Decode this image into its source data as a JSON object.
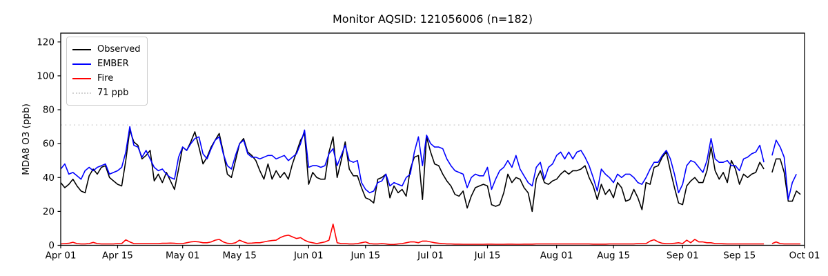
{
  "figure": {
    "background": "#ffffff"
  },
  "chart_data": {
    "type": "line",
    "title": "Monitor AQSID: 121056006 (n=182)",
    "xlabel": "",
    "ylabel": "MDA8 O3 (ppb)",
    "ylim": [
      0,
      125
    ],
    "yticks": [
      0,
      20,
      40,
      60,
      80,
      100,
      120
    ],
    "grid": false,
    "legend_position": "upper-left",
    "n_days": 183,
    "x_tick_days": [
      0,
      14,
      30,
      44,
      61,
      75,
      91,
      105,
      122,
      136,
      153,
      167,
      183
    ],
    "x_tick_labels": [
      "Apr 01",
      "Apr 15",
      "May 01",
      "May 15",
      "Jun 01",
      "Jun 15",
      "Jul 01",
      "Jul 15",
      "Aug 01",
      "Aug 15",
      "Sep 01",
      "Sep 15",
      "Oct 01"
    ],
    "threshold": {
      "label": "71 ppb",
      "value": 71,
      "color": "#d3d3d3",
      "linestyle": "dotted"
    },
    "series": [
      {
        "name": "Observed",
        "color": "#000000",
        "values": [
          37,
          34,
          36,
          39,
          35,
          32,
          31,
          41,
          45,
          42,
          46,
          47,
          40,
          38,
          36,
          35,
          50,
          68,
          61,
          59,
          51,
          53,
          56,
          38,
          42,
          37,
          43,
          38,
          33,
          45,
          58,
          56,
          61,
          67,
          58,
          48,
          52,
          58,
          62,
          66,
          55,
          42,
          40,
          50,
          60,
          63,
          55,
          53,
          50,
          44,
          39,
          48,
          39,
          44,
          40,
          43,
          39,
          48,
          55,
          62,
          66,
          36,
          43,
          40,
          39,
          39,
          55,
          64,
          40,
          50,
          61,
          45,
          41,
          41,
          34,
          28,
          27,
          25,
          39,
          40,
          42,
          28,
          35,
          31,
          33,
          29,
          45,
          52,
          53,
          27,
          64,
          55,
          48,
          47,
          42,
          38,
          35,
          30,
          29,
          32,
          22,
          29,
          34,
          35,
          36,
          35,
          24,
          23,
          24,
          31,
          42,
          37,
          40,
          39,
          34,
          31,
          20,
          39,
          44,
          37,
          36,
          38,
          39,
          42,
          44,
          42,
          44,
          44,
          45,
          47,
          40,
          35,
          27,
          36,
          30,
          33,
          28,
          37,
          34,
          26,
          27,
          33,
          28,
          21,
          37,
          36,
          46,
          47,
          52,
          55,
          44,
          34,
          25,
          24,
          35,
          38,
          40,
          37,
          37,
          44,
          58,
          44,
          39,
          43,
          37,
          50,
          45,
          36,
          42,
          40,
          42,
          43,
          49,
          45,
          null,
          43,
          51,
          51,
          43,
          26,
          26,
          32,
          30
        ]
      },
      {
        "name": "EMBER",
        "color": "#0000ff",
        "values": [
          45,
          48,
          42,
          43,
          41,
          39,
          44,
          46,
          44,
          46,
          47,
          48,
          42,
          43,
          44,
          46,
          55,
          70,
          59,
          58,
          52,
          56,
          51,
          46,
          44,
          45,
          42,
          40,
          39,
          52,
          58,
          56,
          60,
          63,
          64,
          54,
          51,
          57,
          62,
          64,
          54,
          47,
          45,
          53,
          60,
          62,
          54,
          52,
          52,
          51,
          52,
          53,
          53,
          51,
          52,
          53,
          50,
          52,
          54,
          60,
          68,
          46,
          47,
          47,
          46,
          47,
          54,
          57,
          47,
          53,
          59,
          50,
          49,
          50,
          37,
          33,
          31,
          32,
          37,
          38,
          42,
          35,
          37,
          36,
          35,
          40,
          42,
          55,
          64,
          47,
          65,
          60,
          58,
          58,
          57,
          51,
          47,
          44,
          43,
          42,
          34,
          40,
          42,
          41,
          41,
          46,
          33,
          39,
          44,
          46,
          50,
          46,
          53,
          45,
          41,
          37,
          35,
          46,
          49,
          39,
          46,
          48,
          53,
          55,
          51,
          55,
          51,
          55,
          56,
          52,
          47,
          40,
          32,
          45,
          42,
          40,
          37,
          42,
          40,
          42,
          42,
          40,
          37,
          36,
          40,
          45,
          49,
          49,
          53,
          56,
          51,
          42,
          31,
          36,
          47,
          50,
          49,
          46,
          43,
          50,
          63,
          51,
          49,
          49,
          50,
          47,
          47,
          44,
          51,
          52,
          54,
          55,
          59,
          49,
          null,
          53,
          62,
          58,
          52,
          27,
          37,
          42,
          null
        ]
      },
      {
        "name": "Fire",
        "color": "#ff0000",
        "values": [
          0.8,
          1,
          1.2,
          1.8,
          1,
          0.8,
          0.8,
          1,
          1.7,
          1,
          0.8,
          0.8,
          0.8,
          0.8,
          1,
          1,
          3.2,
          2,
          1,
          1,
          1,
          1,
          1,
          1,
          1,
          1.2,
          1.2,
          1.3,
          1.2,
          1,
          1,
          1.5,
          2,
          2.2,
          2,
          1.5,
          1.5,
          2,
          3,
          3.5,
          2,
          1.2,
          1,
          1.5,
          3,
          2,
          1.2,
          1.3,
          1.5,
          1.5,
          2,
          2.5,
          2.8,
          3,
          4.5,
          5.5,
          6,
          5,
          4,
          4.5,
          3,
          2,
          1.5,
          1,
          1.5,
          2,
          3,
          12.5,
          1.5,
          1,
          1,
          0.8,
          0.8,
          1,
          1.5,
          2,
          1,
          0.8,
          0.8,
          1,
          0.8,
          0.5,
          0.5,
          0.8,
          1,
          1.5,
          2,
          2,
          1.5,
          2.5,
          2.5,
          2,
          1.5,
          1.2,
          1,
          0.8,
          0.8,
          0.7,
          0.7,
          0.6,
          0.6,
          0.6,
          0.6,
          0.6,
          0.6,
          0.7,
          0.7,
          0.6,
          0.6,
          0.6,
          0.7,
          0.7,
          0.6,
          0.6,
          0.7,
          0.7,
          0.7,
          0.8,
          0.8,
          0.8,
          0.8,
          0.8,
          0.8,
          0.8,
          0.8,
          0.8,
          0.8,
          0.8,
          0.8,
          0.8,
          0.8,
          0.7,
          0.7,
          0.7,
          0.7,
          0.8,
          0.8,
          0.8,
          0.8,
          0.8,
          0.8,
          0.8,
          1,
          1,
          1,
          2.5,
          3.3,
          2,
          1.2,
          1,
          1,
          1.2,
          1.5,
          1,
          3,
          1.5,
          3.5,
          2,
          2,
          1.5,
          1.5,
          1,
          1,
          0.9,
          0.8,
          0.8,
          0.8,
          0.8,
          0.8,
          0.8,
          0.8,
          0.8,
          0.8,
          0.8,
          null,
          1,
          2,
          1,
          0.8,
          0.8,
          0.8,
          0.8,
          0.8
        ]
      }
    ]
  },
  "legend": {
    "items": [
      {
        "label": "Observed",
        "color": "#000000",
        "style": "solid"
      },
      {
        "label": "EMBER",
        "color": "#0000ff",
        "style": "solid"
      },
      {
        "label": "Fire",
        "color": "#ff0000",
        "style": "solid"
      },
      {
        "label": "71 ppb",
        "color": "#d3d3d3",
        "style": "dotted"
      }
    ]
  }
}
